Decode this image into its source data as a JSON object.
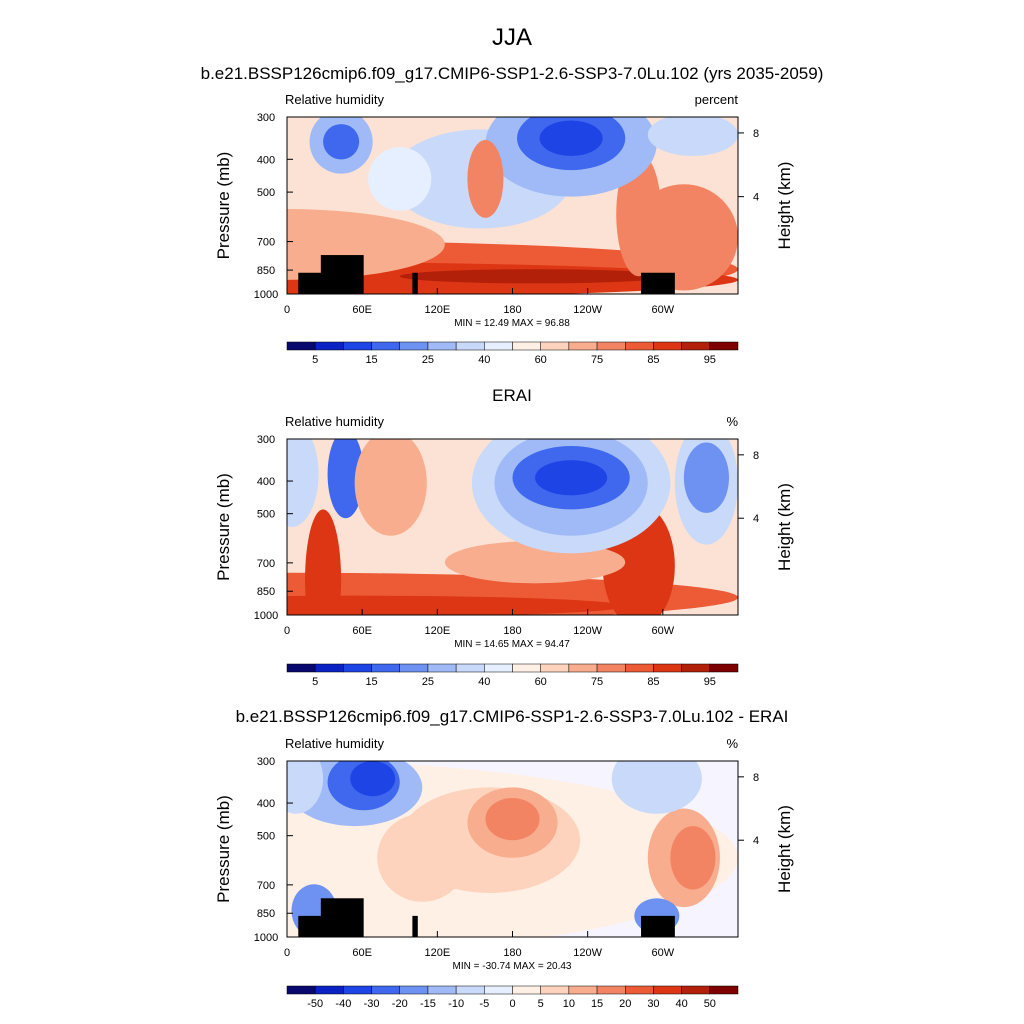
{
  "figure": {
    "title": "JJA"
  },
  "chart_data": [
    {
      "type": "heatmap",
      "title": "b.e21.BSSP126cmip6.f09_g17.CMIP6-SSP1-2.6-SSP3-7.0Lu.102 (yrs 2035-2059)",
      "left_label": "Relative humidity",
      "right_label": "percent",
      "xlabel": "",
      "ylabel": "Pressure (mb)",
      "ylabel_right": "Height (km)",
      "x_ticks": [
        "0",
        "60E",
        "120E",
        "180",
        "120W",
        "60W"
      ],
      "y_ticks": [
        "300",
        "400",
        "500",
        "700",
        "850",
        "1000"
      ],
      "y_ticks_right": [
        "8",
        "4"
      ],
      "stats": "MIN =  12.49  MAX =  96.88",
      "colorbar_labels": [
        "5",
        "15",
        "25",
        "40",
        "60",
        "75",
        "85",
        "95"
      ],
      "colorbar_colors": [
        "#08086e",
        "#0a22c4",
        "#1f44e6",
        "#3f68ee",
        "#6e92f2",
        "#9fbaf6",
        "#c8d9fa",
        "#e6efff",
        "#fff0e6",
        "#fdd3bd",
        "#f8ad8e",
        "#f28463",
        "#ec5a36",
        "#dc3614",
        "#b3200a",
        "#7f0000"
      ]
    },
    {
      "type": "heatmap",
      "title": "ERAI",
      "left_label": "Relative humidity",
      "right_label": "%",
      "xlabel": "",
      "ylabel": "Pressure (mb)",
      "ylabel_right": "Height (km)",
      "x_ticks": [
        "0",
        "60E",
        "120E",
        "180",
        "120W",
        "60W"
      ],
      "y_ticks": [
        "300",
        "400",
        "500",
        "700",
        "850",
        "1000"
      ],
      "y_ticks_right": [
        "8",
        "4"
      ],
      "stats": "MIN =  14.65  MAX =  94.47",
      "colorbar_labels": [
        "5",
        "15",
        "25",
        "40",
        "60",
        "75",
        "85",
        "95"
      ],
      "colorbar_colors": [
        "#08086e",
        "#0a22c4",
        "#1f44e6",
        "#3f68ee",
        "#6e92f2",
        "#9fbaf6",
        "#c8d9fa",
        "#e6efff",
        "#fff0e6",
        "#fdd3bd",
        "#f8ad8e",
        "#f28463",
        "#ec5a36",
        "#dc3614",
        "#b3200a",
        "#7f0000"
      ]
    },
    {
      "type": "heatmap",
      "title": "b.e21.BSSP126cmip6.f09_g17.CMIP6-SSP1-2.6-SSP3-7.0Lu.102 - ERAI",
      "left_label": "Relative humidity",
      "right_label": "%",
      "xlabel": "",
      "ylabel": "Pressure (mb)",
      "ylabel_right": "Height (km)",
      "x_ticks": [
        "0",
        "60E",
        "120E",
        "180",
        "120W",
        "60W"
      ],
      "y_ticks": [
        "300",
        "400",
        "500",
        "700",
        "850",
        "1000"
      ],
      "y_ticks_right": [
        "8",
        "4"
      ],
      "stats": "MIN = -30.74  MAX =  20.43",
      "colorbar_labels": [
        "-50",
        "-40",
        "-30",
        "-20",
        "-15",
        "-10",
        "-5",
        "0",
        "5",
        "10",
        "15",
        "20",
        "30",
        "40",
        "50"
      ],
      "colorbar_colors": [
        "#08086e",
        "#0a22c4",
        "#1f44e6",
        "#3f68ee",
        "#6e92f2",
        "#9fbaf6",
        "#c8d9fa",
        "#e6efff",
        "#fff0e6",
        "#fdd3bd",
        "#f8ad8e",
        "#f28463",
        "#ec5a36",
        "#dc3614",
        "#b3200a",
        "#7f0000"
      ]
    }
  ]
}
